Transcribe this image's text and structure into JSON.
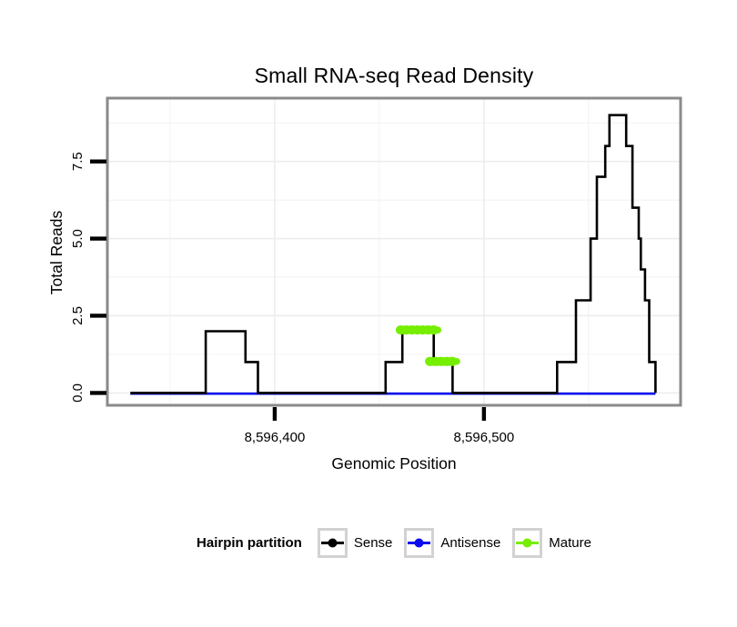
{
  "chart_data": {
    "type": "line",
    "style": "step-density",
    "title": "Small RNA-seq Read Density",
    "xlabel": "Genomic Position",
    "ylabel": "Total Reads",
    "xlim": [
      8596320,
      8596594
    ],
    "ylim": [
      -0.4,
      9.55
    ],
    "grid": "faint major+minor",
    "legend_position": "bottom",
    "x_ticks": [
      {
        "pos": 8596400,
        "label": "8,596,400"
      },
      {
        "pos": 8596500,
        "label": "8,596,500"
      }
    ],
    "x_minor": [
      8596350,
      8596450,
      8596550
    ],
    "y_ticks": [
      {
        "pos": 0,
        "label": "0.0"
      },
      {
        "pos": 2.5,
        "label": "2.5"
      },
      {
        "pos": 5,
        "label": "5.0"
      },
      {
        "pos": 7.5,
        "label": "7.5"
      }
    ],
    "y_minor": [
      1.25,
      3.75,
      6.25,
      8.75
    ],
    "series": [
      {
        "name": "Antisense",
        "color": "#0b0bee",
        "kind": "line",
        "points": [
          [
            8596331,
            0
          ],
          [
            8596582,
            0
          ]
        ]
      },
      {
        "name": "Sense",
        "color": "#000000",
        "kind": "step",
        "points": [
          [
            8596331,
            0
          ],
          [
            8596367,
            0
          ],
          [
            8596367,
            2
          ],
          [
            8596386,
            2
          ],
          [
            8596386,
            1
          ],
          [
            8596392,
            1
          ],
          [
            8596392,
            0
          ],
          [
            8596453,
            0
          ],
          [
            8596453,
            1
          ],
          [
            8596461,
            1
          ],
          [
            8596461,
            2
          ],
          [
            8596476,
            2
          ],
          [
            8596476,
            1
          ],
          [
            8596485,
            1
          ],
          [
            8596485,
            0
          ],
          [
            8596535,
            0
          ],
          [
            8596535,
            1
          ],
          [
            8596544,
            1
          ],
          [
            8596544,
            3
          ],
          [
            8596551,
            3
          ],
          [
            8596551,
            5
          ],
          [
            8596554,
            5
          ],
          [
            8596554,
            7
          ],
          [
            8596558,
            7
          ],
          [
            8596558,
            8
          ],
          [
            8596560,
            8
          ],
          [
            8596560,
            9
          ],
          [
            8596568,
            9
          ],
          [
            8596568,
            8
          ],
          [
            8596571,
            8
          ],
          [
            8596571,
            6
          ],
          [
            8596574,
            6
          ],
          [
            8596574,
            5
          ],
          [
            8596575,
            5
          ],
          [
            8596575,
            4
          ],
          [
            8596577,
            4
          ],
          [
            8596577,
            3
          ],
          [
            8596579,
            3
          ],
          [
            8596579,
            1
          ],
          [
            8596582,
            1
          ],
          [
            8596582,
            0
          ]
        ]
      },
      {
        "name": "Mature",
        "color": "#76ee00",
        "kind": "thick-segments",
        "segments": [
          {
            "x0": 8596460,
            "x1": 8596478,
            "y": 2.04
          },
          {
            "x0": 8596474,
            "x1": 8596487,
            "y": 1.02
          }
        ]
      }
    ]
  },
  "legend": {
    "title": "Hairpin partition",
    "items": [
      {
        "label": "Sense",
        "color": "#000000"
      },
      {
        "label": "Antisense",
        "color": "#0b0bee"
      },
      {
        "label": "Mature",
        "color": "#76ee00"
      }
    ]
  }
}
